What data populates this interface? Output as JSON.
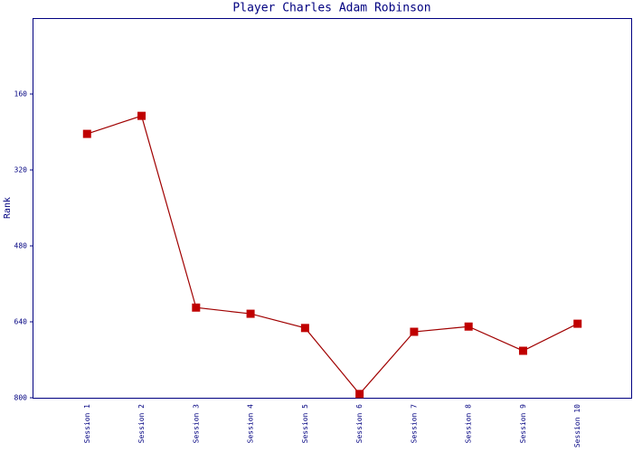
{
  "chart_data": {
    "type": "line",
    "title": "Player Charles Adam Robinson",
    "y_label": "Rank",
    "categories": [
      "Session 1",
      "Session 2",
      "Session 3",
      "Session 4",
      "Session 5",
      "Session 6",
      "Session 7",
      "Session 8",
      "Session 9",
      "Session 10"
    ],
    "series": [
      {
        "name": "Rank",
        "color": "#a00000",
        "marker_color": "#c00000",
        "values": [
          244,
          206,
          610,
          623,
          653,
          792,
          661,
          650,
          701,
          644
        ]
      }
    ],
    "ylim": [
      800,
      0
    ],
    "yticks": [
      160,
      320,
      480,
      640,
      800
    ],
    "grid": false
  }
}
